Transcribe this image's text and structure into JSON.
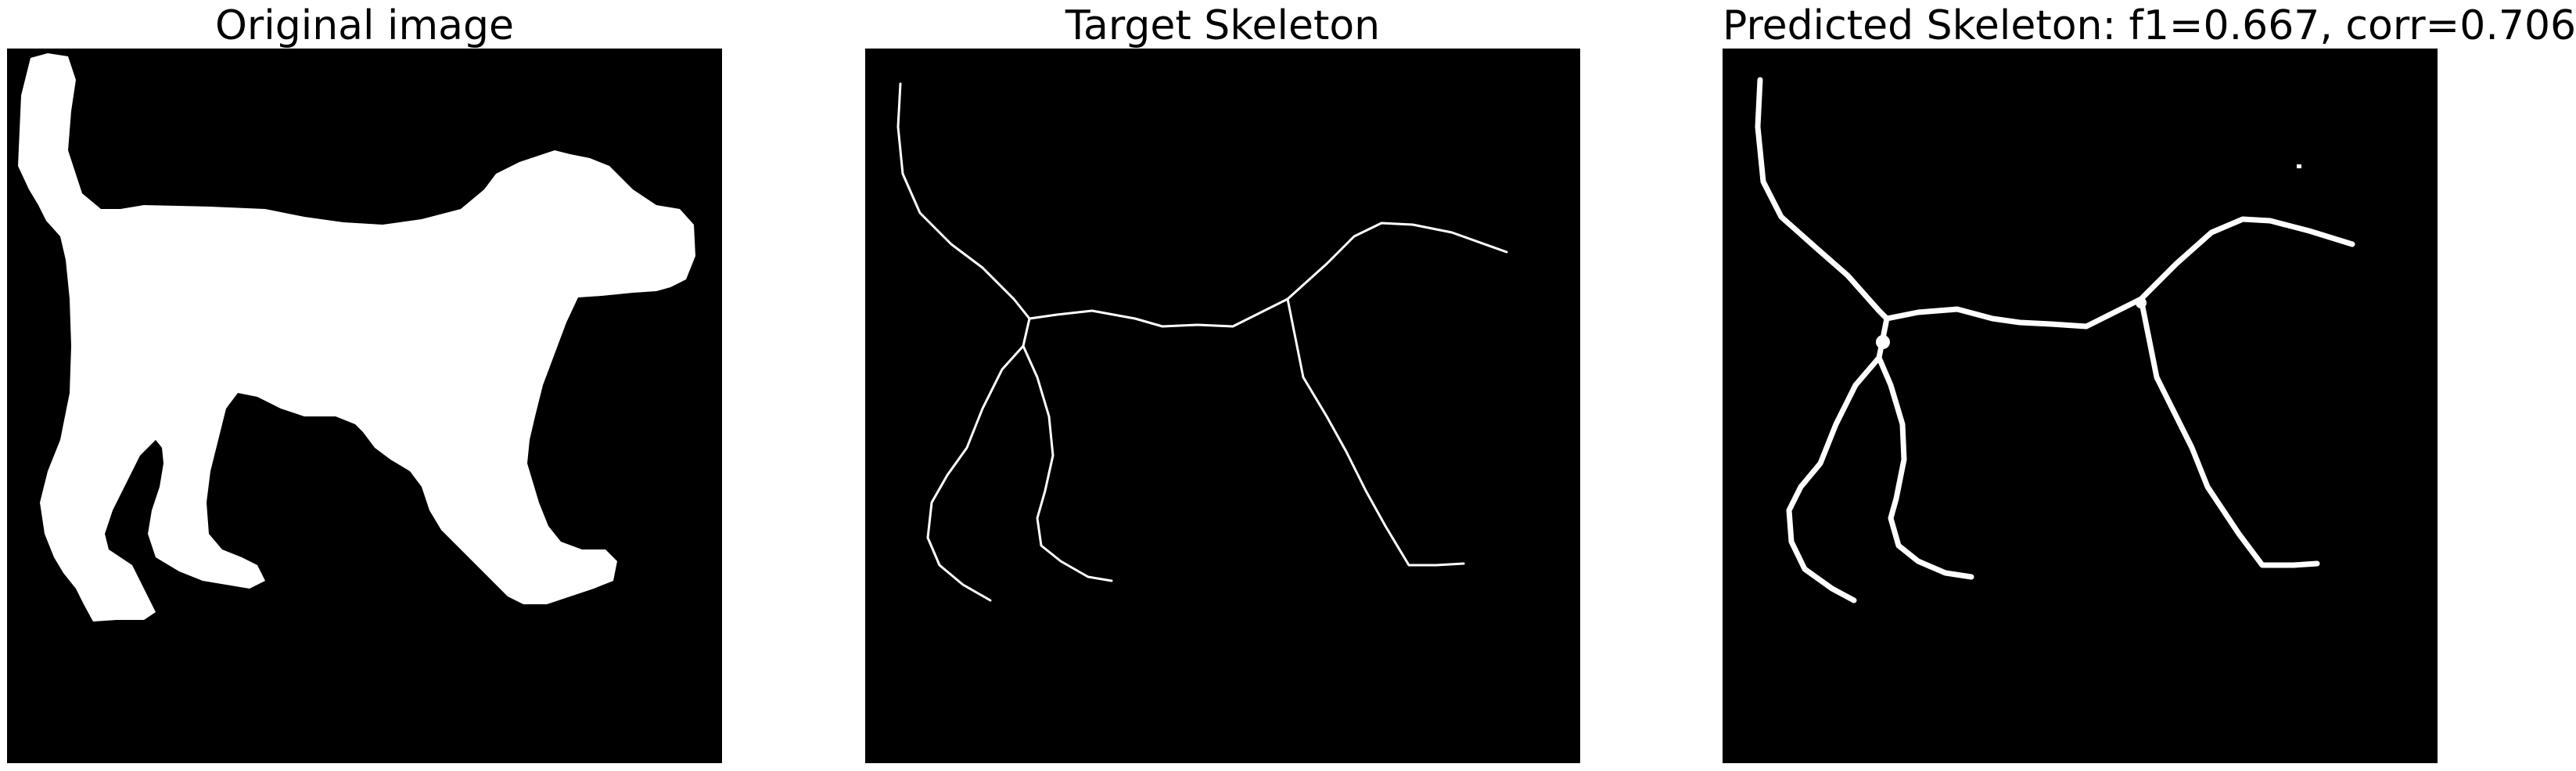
{
  "panels": [
    {
      "title": "Original image",
      "content": "binary silhouette of a walking dog"
    },
    {
      "title": "Target Skeleton",
      "content": "thin white skeleton lines"
    },
    {
      "title": "Predicted Skeleton: f1=0.667, corr=0.706",
      "content": "thick white skeleton lines"
    }
  ],
  "colors": {
    "background": "#000000",
    "foreground": "#ffffff",
    "page": "#ffffff"
  }
}
